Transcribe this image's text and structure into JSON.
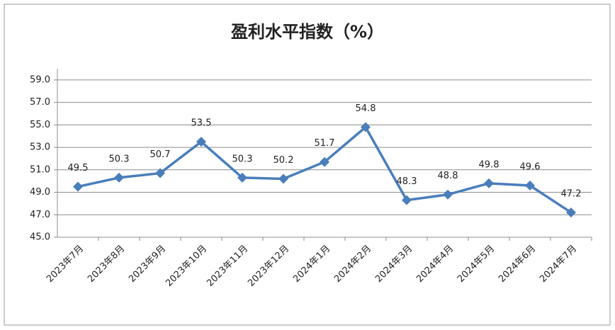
{
  "chart_data": {
    "type": "line",
    "title": "盈利水平指数（%）",
    "categories": [
      "2023年7月",
      "2023年8月",
      "2023年9月",
      "2023年10月",
      "2023年11月",
      "2023年12月",
      "2024年1月",
      "2024年2月",
      "2024年3月",
      "2024年4月",
      "2024年5月",
      "2024年6月",
      "2024年7月"
    ],
    "values": [
      49.5,
      50.3,
      50.7,
      53.5,
      50.3,
      50.2,
      51.7,
      54.8,
      48.3,
      48.8,
      49.8,
      49.6,
      47.2
    ],
    "color": "#4a7ebb",
    "ylim": [
      45,
      60
    ],
    "yticks": [
      {
        "value": 45,
        "label": "45.0"
      },
      {
        "value": 47,
        "label": "47.0"
      },
      {
        "value": 49,
        "label": "49.0"
      },
      {
        "value": 51,
        "label": "51.0"
      },
      {
        "value": 53,
        "label": "53.0"
      },
      {
        "value": 55,
        "label": "55.0"
      },
      {
        "value": 57,
        "label": "57.0"
      },
      {
        "value": 59,
        "label": "59.0"
      }
    ],
    "grid": true
  }
}
